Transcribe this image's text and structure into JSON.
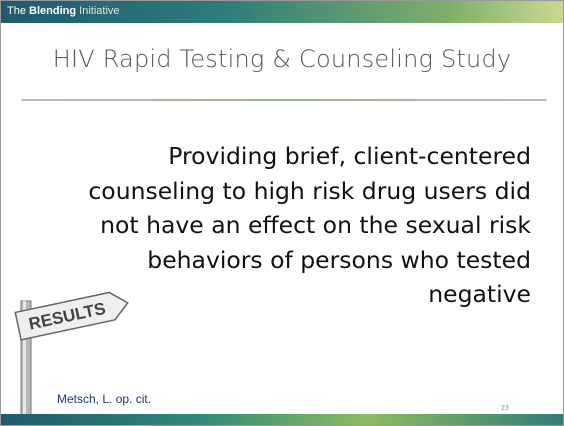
{
  "header": {
    "brand": [
      "The",
      "Blending",
      "Initiative"
    ]
  },
  "title": "HIV Rapid Testing & Counseling Study",
  "body": "Providing brief, client-centered counseling to high risk drug users did not have an effect on the sexual risk behaviors of persons who tested negative",
  "sign": "RESULTS",
  "footer": {
    "citation": "Metsch, L. op. cit.",
    "page": "23"
  }
}
